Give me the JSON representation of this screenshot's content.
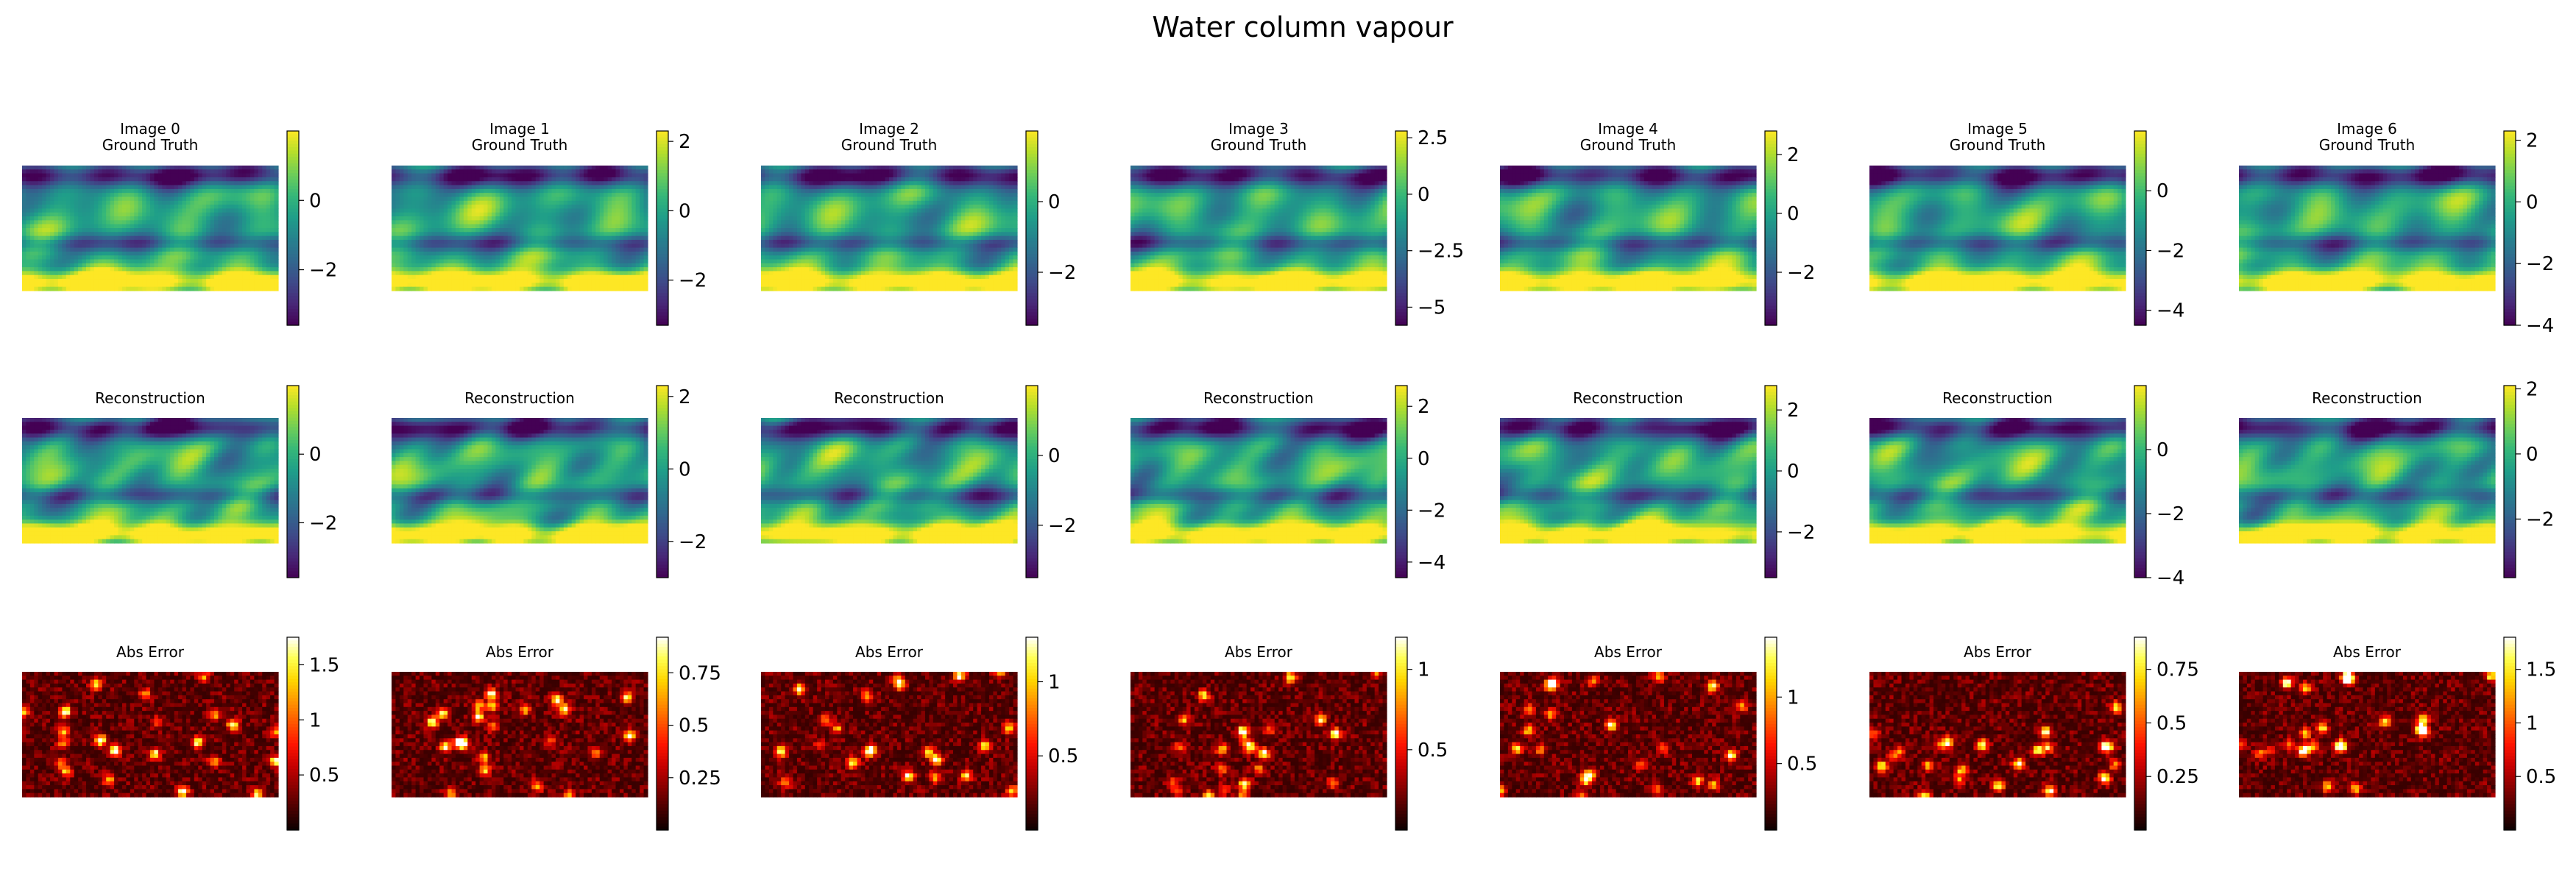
{
  "figure": {
    "suptitle": "Water column vapour"
  },
  "chart_data": {
    "type": "heatmap",
    "title": "Water column vapour",
    "layout_rows": [
      "ground_truth",
      "reconstruction",
      "abs_error"
    ],
    "colormaps": {
      "ground_truth": "viridis",
      "reconstruction": "viridis",
      "abs_error": "hot"
    },
    "panels": [
      {
        "image": "Image 0",
        "gt": {
          "title_line1": "Image 0",
          "title_line2": "Ground Truth",
          "vmin": -3.6,
          "vmax": 2.0,
          "ticks": [
            0,
            -2
          ]
        },
        "recon": {
          "title": "Reconstruction",
          "vmin": -3.6,
          "vmax": 2.0,
          "ticks": [
            0,
            -2
          ]
        },
        "err": {
          "title": "Abs Error",
          "vmin": 0.0,
          "vmax": 1.75,
          "ticks": [
            1.5,
            1.0,
            0.5
          ]
        }
      },
      {
        "image": "Image 1",
        "gt": {
          "title_line1": "Image 1",
          "title_line2": "Ground Truth",
          "vmin": -3.3,
          "vmax": 2.3,
          "ticks": [
            2,
            0,
            -2
          ]
        },
        "recon": {
          "title": "Reconstruction",
          "vmin": -3.0,
          "vmax": 2.3,
          "ticks": [
            2,
            0,
            -2
          ]
        },
        "err": {
          "title": "Abs Error",
          "vmin": 0.0,
          "vmax": 0.92,
          "ticks": [
            0.75,
            0.5,
            0.25
          ]
        }
      },
      {
        "image": "Image 2",
        "gt": {
          "title_line1": "Image 2",
          "title_line2": "Ground Truth",
          "vmin": -3.5,
          "vmax": 2.0,
          "ticks": [
            0,
            -2
          ]
        },
        "recon": {
          "title": "Reconstruction",
          "vmin": -3.5,
          "vmax": 2.0,
          "ticks": [
            0,
            -2
          ]
        },
        "err": {
          "title": "Abs Error",
          "vmin": 0.0,
          "vmax": 1.3,
          "ticks": [
            1.0,
            0.5
          ]
        }
      },
      {
        "image": "Image 3",
        "gt": {
          "title_line1": "Image 3",
          "title_line2": "Ground Truth",
          "vmin": -5.8,
          "vmax": 2.8,
          "ticks": [
            2.5,
            0.0,
            -2.5,
            -5.0
          ]
        },
        "recon": {
          "title": "Reconstruction",
          "vmin": -4.6,
          "vmax": 2.8,
          "ticks": [
            2,
            0,
            -2,
            -4
          ]
        },
        "err": {
          "title": "Abs Error",
          "vmin": 0.0,
          "vmax": 1.2,
          "ticks": [
            1.0,
            0.5
          ]
        }
      },
      {
        "image": "Image 4",
        "gt": {
          "title_line1": "Image 4",
          "title_line2": "Ground Truth",
          "vmin": -3.8,
          "vmax": 2.8,
          "ticks": [
            2,
            0,
            -2
          ]
        },
        "recon": {
          "title": "Reconstruction",
          "vmin": -3.5,
          "vmax": 2.8,
          "ticks": [
            2,
            0,
            -2
          ]
        },
        "err": {
          "title": "Abs Error",
          "vmin": 0.0,
          "vmax": 1.45,
          "ticks": [
            1.0,
            0.5
          ]
        }
      },
      {
        "image": "Image 5",
        "gt": {
          "title_line1": "Image 5",
          "title_line2": "Ground Truth",
          "vmin": -4.5,
          "vmax": 2.0,
          "ticks": [
            0,
            -2,
            -4
          ]
        },
        "recon": {
          "title": "Reconstruction",
          "vmin": -4.0,
          "vmax": 2.0,
          "ticks": [
            0,
            -2,
            -4
          ]
        },
        "err": {
          "title": "Abs Error",
          "vmin": 0.0,
          "vmax": 0.9,
          "ticks": [
            0.75,
            0.5,
            0.25
          ]
        }
      },
      {
        "image": "Image 6",
        "gt": {
          "title_line1": "Image 6",
          "title_line2": "Ground Truth",
          "vmin": -4.0,
          "vmax": 2.3,
          "ticks": [
            2,
            0,
            -2,
            -4
          ]
        },
        "recon": {
          "title": "Reconstruction",
          "vmin": -3.8,
          "vmax": 2.1,
          "ticks": [
            2,
            0,
            -2
          ]
        },
        "err": {
          "title": "Abs Error",
          "vmin": 0.0,
          "vmax": 1.8,
          "ticks": [
            1.5,
            1.0,
            0.5
          ]
        }
      }
    ]
  }
}
